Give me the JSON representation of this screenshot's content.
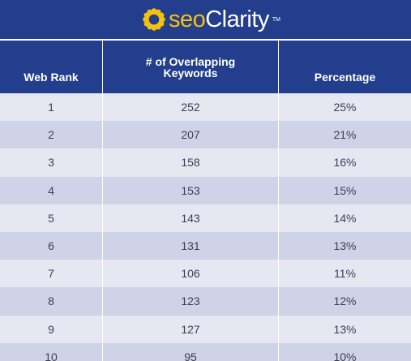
{
  "logo": {
    "prefix": "seo",
    "name": "Clarity",
    "tm": "TM",
    "brand_color": "#f4c20d",
    "background_color": "#233e8c"
  },
  "chart_data": {
    "type": "table",
    "columns": [
      "Web Rank",
      "# of Overlapping Keywords",
      "Percentage"
    ],
    "rows": [
      [
        "1",
        "252",
        "25%"
      ],
      [
        "2",
        "207",
        "21%"
      ],
      [
        "3",
        "158",
        "16%"
      ],
      [
        "4",
        "153",
        "15%"
      ],
      [
        "5",
        "143",
        "14%"
      ],
      [
        "6",
        "131",
        "13%"
      ],
      [
        "7",
        "106",
        "11%"
      ],
      [
        "8",
        "123",
        "12%"
      ],
      [
        "9",
        "127",
        "13%"
      ],
      [
        "10",
        "95",
        "10%"
      ]
    ],
    "header_lines": {
      "overlap": [
        "# of Overlapping",
        "Keywords"
      ]
    },
    "colors": {
      "header_bg": "#233e8c",
      "row_light": "#e6e7f1",
      "row_dark": "#cfd3e7",
      "cell_text": "#3a3f58"
    }
  }
}
